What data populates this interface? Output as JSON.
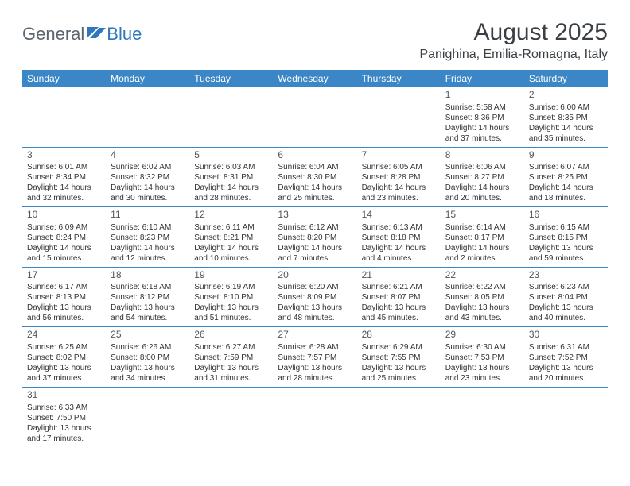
{
  "logo": {
    "word1": "General",
    "word2": "Blue"
  },
  "title": "August 2025",
  "location": "Panighina, Emilia-Romagna, Italy",
  "colors": {
    "header_bg": "#3b86c6",
    "header_text": "#ffffff",
    "rule": "#3b86c6",
    "text": "#333333",
    "title_text": "#3a3f44",
    "logo_gray": "#5c6670",
    "logo_blue": "#2f78bd",
    "page_bg": "#ffffff"
  },
  "day_headers": [
    "Sunday",
    "Monday",
    "Tuesday",
    "Wednesday",
    "Thursday",
    "Friday",
    "Saturday"
  ],
  "weeks": [
    [
      null,
      null,
      null,
      null,
      null,
      {
        "n": "1",
        "sr": "Sunrise: 5:58 AM",
        "ss": "Sunset: 8:36 PM",
        "d1": "Daylight: 14 hours",
        "d2": "and 37 minutes."
      },
      {
        "n": "2",
        "sr": "Sunrise: 6:00 AM",
        "ss": "Sunset: 8:35 PM",
        "d1": "Daylight: 14 hours",
        "d2": "and 35 minutes."
      }
    ],
    [
      {
        "n": "3",
        "sr": "Sunrise: 6:01 AM",
        "ss": "Sunset: 8:34 PM",
        "d1": "Daylight: 14 hours",
        "d2": "and 32 minutes."
      },
      {
        "n": "4",
        "sr": "Sunrise: 6:02 AM",
        "ss": "Sunset: 8:32 PM",
        "d1": "Daylight: 14 hours",
        "d2": "and 30 minutes."
      },
      {
        "n": "5",
        "sr": "Sunrise: 6:03 AM",
        "ss": "Sunset: 8:31 PM",
        "d1": "Daylight: 14 hours",
        "d2": "and 28 minutes."
      },
      {
        "n": "6",
        "sr": "Sunrise: 6:04 AM",
        "ss": "Sunset: 8:30 PM",
        "d1": "Daylight: 14 hours",
        "d2": "and 25 minutes."
      },
      {
        "n": "7",
        "sr": "Sunrise: 6:05 AM",
        "ss": "Sunset: 8:28 PM",
        "d1": "Daylight: 14 hours",
        "d2": "and 23 minutes."
      },
      {
        "n": "8",
        "sr": "Sunrise: 6:06 AM",
        "ss": "Sunset: 8:27 PM",
        "d1": "Daylight: 14 hours",
        "d2": "and 20 minutes."
      },
      {
        "n": "9",
        "sr": "Sunrise: 6:07 AM",
        "ss": "Sunset: 8:25 PM",
        "d1": "Daylight: 14 hours",
        "d2": "and 18 minutes."
      }
    ],
    [
      {
        "n": "10",
        "sr": "Sunrise: 6:09 AM",
        "ss": "Sunset: 8:24 PM",
        "d1": "Daylight: 14 hours",
        "d2": "and 15 minutes."
      },
      {
        "n": "11",
        "sr": "Sunrise: 6:10 AM",
        "ss": "Sunset: 8:23 PM",
        "d1": "Daylight: 14 hours",
        "d2": "and 12 minutes."
      },
      {
        "n": "12",
        "sr": "Sunrise: 6:11 AM",
        "ss": "Sunset: 8:21 PM",
        "d1": "Daylight: 14 hours",
        "d2": "and 10 minutes."
      },
      {
        "n": "13",
        "sr": "Sunrise: 6:12 AM",
        "ss": "Sunset: 8:20 PM",
        "d1": "Daylight: 14 hours",
        "d2": "and 7 minutes."
      },
      {
        "n": "14",
        "sr": "Sunrise: 6:13 AM",
        "ss": "Sunset: 8:18 PM",
        "d1": "Daylight: 14 hours",
        "d2": "and 4 minutes."
      },
      {
        "n": "15",
        "sr": "Sunrise: 6:14 AM",
        "ss": "Sunset: 8:17 PM",
        "d1": "Daylight: 14 hours",
        "d2": "and 2 minutes."
      },
      {
        "n": "16",
        "sr": "Sunrise: 6:15 AM",
        "ss": "Sunset: 8:15 PM",
        "d1": "Daylight: 13 hours",
        "d2": "and 59 minutes."
      }
    ],
    [
      {
        "n": "17",
        "sr": "Sunrise: 6:17 AM",
        "ss": "Sunset: 8:13 PM",
        "d1": "Daylight: 13 hours",
        "d2": "and 56 minutes."
      },
      {
        "n": "18",
        "sr": "Sunrise: 6:18 AM",
        "ss": "Sunset: 8:12 PM",
        "d1": "Daylight: 13 hours",
        "d2": "and 54 minutes."
      },
      {
        "n": "19",
        "sr": "Sunrise: 6:19 AM",
        "ss": "Sunset: 8:10 PM",
        "d1": "Daylight: 13 hours",
        "d2": "and 51 minutes."
      },
      {
        "n": "20",
        "sr": "Sunrise: 6:20 AM",
        "ss": "Sunset: 8:09 PM",
        "d1": "Daylight: 13 hours",
        "d2": "and 48 minutes."
      },
      {
        "n": "21",
        "sr": "Sunrise: 6:21 AM",
        "ss": "Sunset: 8:07 PM",
        "d1": "Daylight: 13 hours",
        "d2": "and 45 minutes."
      },
      {
        "n": "22",
        "sr": "Sunrise: 6:22 AM",
        "ss": "Sunset: 8:05 PM",
        "d1": "Daylight: 13 hours",
        "d2": "and 43 minutes."
      },
      {
        "n": "23",
        "sr": "Sunrise: 6:23 AM",
        "ss": "Sunset: 8:04 PM",
        "d1": "Daylight: 13 hours",
        "d2": "and 40 minutes."
      }
    ],
    [
      {
        "n": "24",
        "sr": "Sunrise: 6:25 AM",
        "ss": "Sunset: 8:02 PM",
        "d1": "Daylight: 13 hours",
        "d2": "and 37 minutes."
      },
      {
        "n": "25",
        "sr": "Sunrise: 6:26 AM",
        "ss": "Sunset: 8:00 PM",
        "d1": "Daylight: 13 hours",
        "d2": "and 34 minutes."
      },
      {
        "n": "26",
        "sr": "Sunrise: 6:27 AM",
        "ss": "Sunset: 7:59 PM",
        "d1": "Daylight: 13 hours",
        "d2": "and 31 minutes."
      },
      {
        "n": "27",
        "sr": "Sunrise: 6:28 AM",
        "ss": "Sunset: 7:57 PM",
        "d1": "Daylight: 13 hours",
        "d2": "and 28 minutes."
      },
      {
        "n": "28",
        "sr": "Sunrise: 6:29 AM",
        "ss": "Sunset: 7:55 PM",
        "d1": "Daylight: 13 hours",
        "d2": "and 25 minutes."
      },
      {
        "n": "29",
        "sr": "Sunrise: 6:30 AM",
        "ss": "Sunset: 7:53 PM",
        "d1": "Daylight: 13 hours",
        "d2": "and 23 minutes."
      },
      {
        "n": "30",
        "sr": "Sunrise: 6:31 AM",
        "ss": "Sunset: 7:52 PM",
        "d1": "Daylight: 13 hours",
        "d2": "and 20 minutes."
      }
    ],
    [
      {
        "n": "31",
        "sr": "Sunrise: 6:33 AM",
        "ss": "Sunset: 7:50 PM",
        "d1": "Daylight: 13 hours",
        "d2": "and 17 minutes."
      },
      null,
      null,
      null,
      null,
      null,
      null
    ]
  ]
}
